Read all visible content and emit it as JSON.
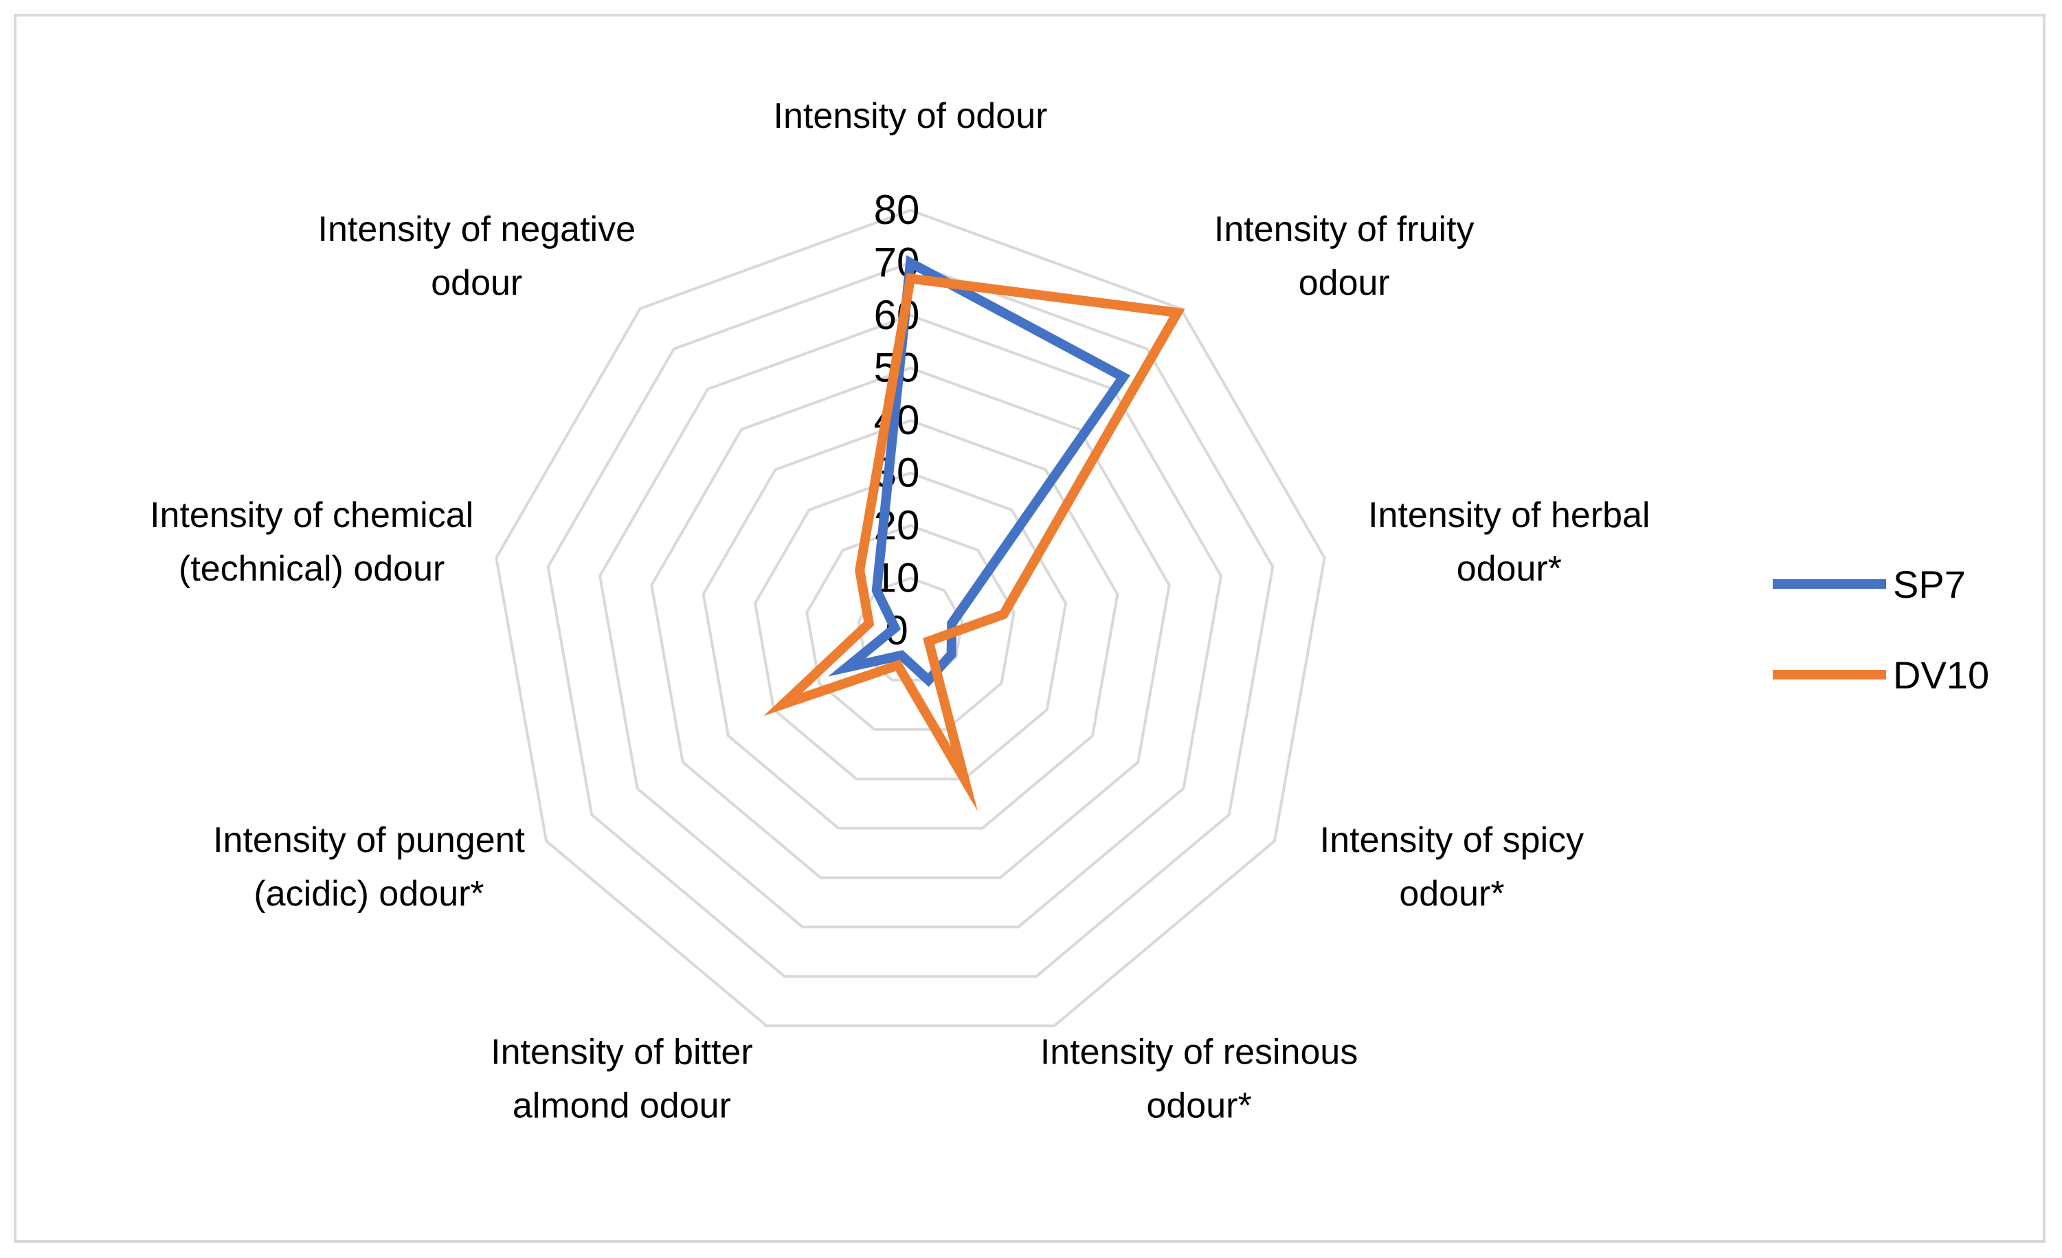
{
  "chart_data": {
    "type": "radar",
    "title": "",
    "axes": [
      [
        "Intensity of odour"
      ],
      [
        "Intensity of fruity",
        "odour"
      ],
      [
        "Intensity of herbal",
        "odour*"
      ],
      [
        "Intensity of spicy",
        "odour*"
      ],
      [
        "Intensity of resinous",
        "odour*"
      ],
      [
        "Intensity of bitter",
        "almond odour"
      ],
      [
        "Intensity of pungent",
        "(acidic) odour*"
      ],
      [
        "Intensity of chemical",
        "(technical) odour"
      ],
      [
        "Intensity of negative",
        "odour"
      ]
    ],
    "ticks": [
      "0",
      "10",
      "20",
      "30",
      "40",
      "50",
      "60",
      "70",
      "80"
    ],
    "rmax": 80,
    "grid": true,
    "legend_position": "right",
    "series": [
      {
        "name": "SP7",
        "color": "#4472C4",
        "values": [
          70,
          63,
          8,
          9,
          10,
          5,
          14,
          3,
          10
        ]
      },
      {
        "name": "DV10",
        "color": "#ED7D31",
        "values": [
          67,
          79,
          18,
          4,
          30,
          7,
          28,
          8,
          15
        ]
      }
    ]
  }
}
